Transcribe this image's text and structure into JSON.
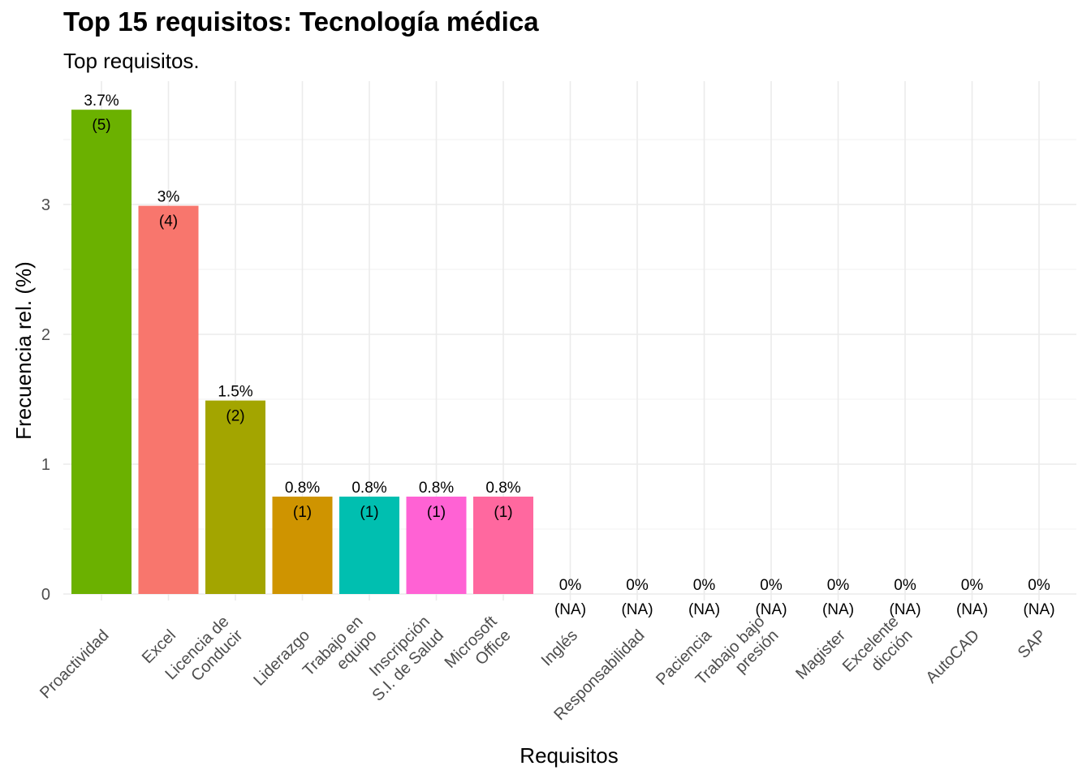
{
  "chart_data": {
    "type": "bar",
    "title": "Top 15 requisitos: Tecnología médica",
    "subtitle": "Top requisitos.",
    "xlabel": "Requisitos",
    "ylabel": "Frecuencia rel. (%)",
    "ylim": [
      0,
      3.73
    ],
    "yticks": [
      0,
      1,
      2,
      3
    ],
    "grid": true,
    "legend": "none",
    "categories": [
      "Proactividad",
      "Excel",
      "Licencia de\nConducir",
      "Liderazgo",
      "Trabajo en\nequipo",
      "Inscripción\nS.I. de Salud",
      "Microsoft\nOffice",
      "Inglés",
      "Responsabilidad",
      "Paciencia",
      "Trabajo bajo\npresión",
      "Magister",
      "Excelente\ndicción",
      "AutoCAD",
      "SAP"
    ],
    "values": [
      3.73,
      2.99,
      1.49,
      0.75,
      0.75,
      0.75,
      0.75,
      0,
      0,
      0,
      0,
      0,
      0,
      0,
      0
    ],
    "pct_labels": [
      "3.7%",
      "3%",
      "1.5%",
      "0.8%",
      "0.8%",
      "0.8%",
      "0.8%",
      "0%",
      "0%",
      "0%",
      "0%",
      "0%",
      "0%",
      "0%",
      "0%"
    ],
    "count_labels": [
      "(5)",
      "(4)",
      "(2)",
      "(1)",
      "(1)",
      "(1)",
      "(1)",
      "(NA)",
      "(NA)",
      "(NA)",
      "(NA)",
      "(NA)",
      "(NA)",
      "(NA)",
      "(NA)"
    ],
    "colors": [
      "#6BB100",
      "#F8766D",
      "#A3A500",
      "#CF9400",
      "#00BFB0",
      "#FF62D4",
      "#FF689F",
      "#999999",
      "#999999",
      "#999999",
      "#999999",
      "#999999",
      "#999999",
      "#999999",
      "#999999"
    ]
  }
}
